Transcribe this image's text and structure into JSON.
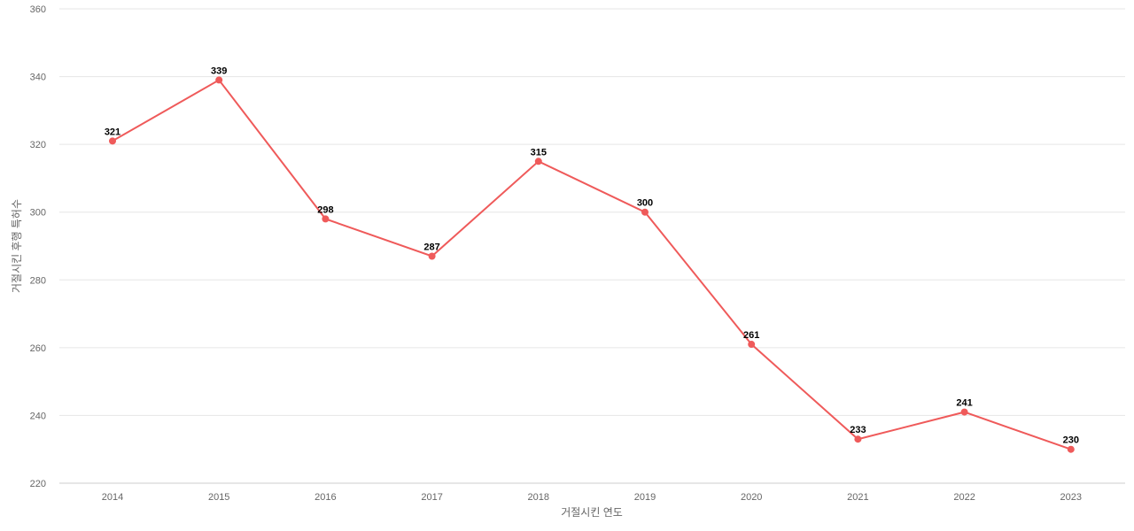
{
  "chart_data": {
    "type": "line",
    "xlabel": "거절시킨 연도",
    "ylabel": "거절시킨 후행 특허수",
    "categories": [
      "2014",
      "2015",
      "2016",
      "2017",
      "2018",
      "2019",
      "2020",
      "2021",
      "2022",
      "2023"
    ],
    "series": [
      {
        "values": [
          321,
          339,
          298,
          287,
          315,
          300,
          261,
          233,
          241,
          230
        ]
      }
    ],
    "ylim": [
      220,
      360
    ],
    "yticks": [
      220,
      240,
      260,
      280,
      300,
      320,
      340,
      360
    ],
    "grid": true,
    "legend": "none",
    "data_labels": true,
    "colors": {
      "line": "#ef5a5a",
      "marker": "#ef5a5a"
    }
  }
}
